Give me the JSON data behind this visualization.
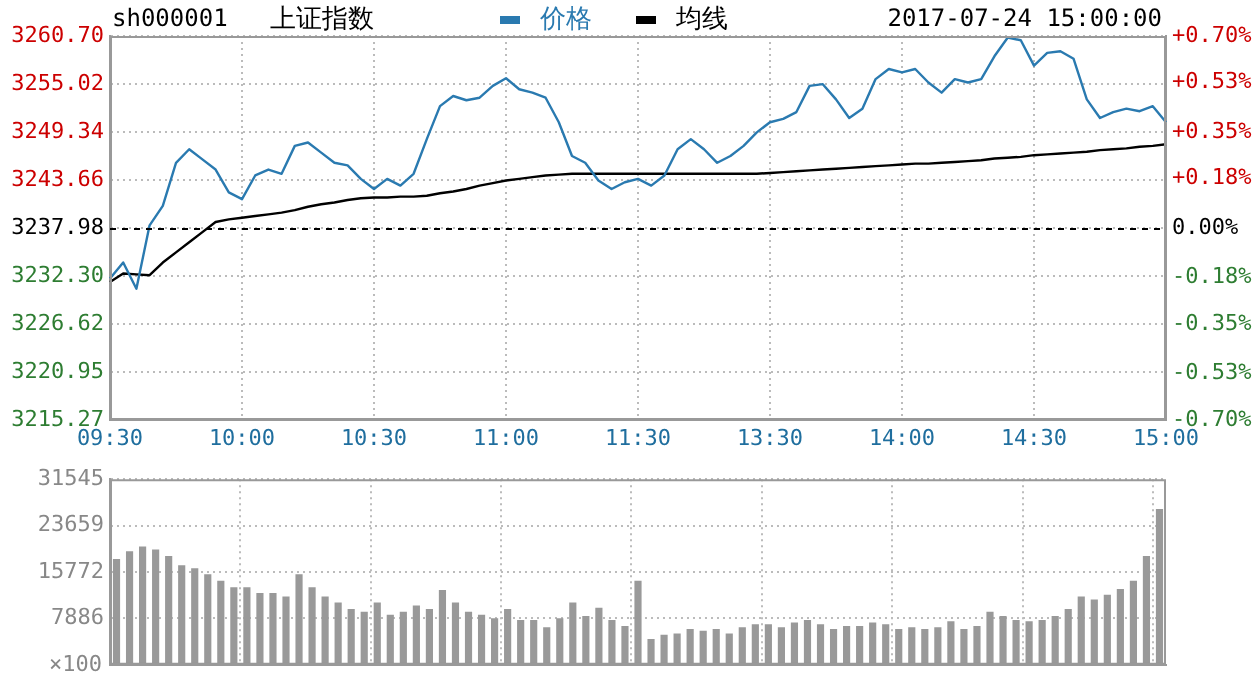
{
  "chart_data": [
    {
      "type": "line",
      "title": "上证指数",
      "annotations": [
        "sh000001",
        "2017-07-24 15:00:00"
      ],
      "categories": [
        "09:30",
        null,
        null,
        null,
        null,
        null,
        null,
        null,
        null,
        null,
        "10:00",
        null,
        null,
        null,
        null,
        null,
        null,
        null,
        null,
        null,
        "10:30",
        null,
        null,
        null,
        null,
        null,
        null,
        null,
        null,
        null,
        "11:00",
        null,
        null,
        null,
        null,
        null,
        null,
        null,
        null,
        null,
        "11:30",
        null,
        null,
        null,
        null,
        null,
        null,
        null,
        null,
        null,
        "13:30",
        null,
        null,
        null,
        null,
        null,
        null,
        null,
        null,
        null,
        "14:00",
        null,
        null,
        null,
        null,
        null,
        null,
        null,
        null,
        null,
        "14:30",
        null,
        null,
        null,
        null,
        null,
        null,
        null,
        null,
        null,
        "15:00"
      ],
      "series": [
        {
          "name": "价格",
          "color": "#2a7ab0",
          "values": [
            3232.0,
            3233.9,
            3230.8,
            3238.3,
            3240.6,
            3245.7,
            3247.3,
            3246.1,
            3244.9,
            3242.2,
            3241.4,
            3244.2,
            3244.9,
            3244.4,
            3247.7,
            3248.1,
            3246.9,
            3245.7,
            3245.4,
            3243.8,
            3242.6,
            3243.8,
            3243.0,
            3244.4,
            3248.5,
            3252.4,
            3253.6,
            3253.1,
            3253.4,
            3254.8,
            3255.7,
            3254.4,
            3254.0,
            3253.4,
            3250.5,
            3246.5,
            3245.7,
            3243.6,
            3242.6,
            3243.4,
            3243.8,
            3243.0,
            3244.2,
            3247.3,
            3248.5,
            3247.3,
            3245.7,
            3246.5,
            3247.7,
            3249.3,
            3250.5,
            3250.9,
            3251.7,
            3254.8,
            3255.0,
            3253.2,
            3251.0,
            3252.1,
            3255.6,
            3256.8,
            3256.4,
            3256.8,
            3255.2,
            3254.0,
            3255.6,
            3255.2,
            3255.6,
            3258.3,
            3260.5,
            3260.2,
            3257.2,
            3258.7,
            3258.9,
            3258.0,
            3253.2,
            3251.0,
            3251.7,
            3252.1,
            3251.8,
            3252.4,
            3250.5
          ]
        },
        {
          "name": "均线",
          "color": "#000000",
          "values": [
            3231.6,
            3232.6,
            3232.5,
            3232.4,
            3233.9,
            3235.1,
            3236.3,
            3237.5,
            3238.7,
            3239.0,
            3239.2,
            3239.4,
            3239.6,
            3239.8,
            3240.1,
            3240.5,
            3240.8,
            3241.0,
            3241.3,
            3241.5,
            3241.6,
            3241.6,
            3241.7,
            3241.7,
            3241.8,
            3242.1,
            3242.3,
            3242.6,
            3243.0,
            3243.3,
            3243.6,
            3243.8,
            3244.0,
            3244.2,
            3244.3,
            3244.4,
            3244.4,
            3244.4,
            3244.4,
            3244.4,
            3244.4,
            3244.4,
            3244.4,
            3244.4,
            3244.4,
            3244.4,
            3244.4,
            3244.4,
            3244.4,
            3244.4,
            3244.5,
            3244.6,
            3244.7,
            3244.8,
            3244.9,
            3245.0,
            3245.1,
            3245.2,
            3245.3,
            3245.4,
            3245.5,
            3245.6,
            3245.6,
            3245.7,
            3245.8,
            3245.9,
            3246.0,
            3246.2,
            3246.3,
            3246.4,
            3246.6,
            3246.7,
            3246.8,
            3246.9,
            3247.0,
            3247.2,
            3247.3,
            3247.4,
            3247.6,
            3247.7,
            3247.9
          ]
        }
      ],
      "ylim": [
        3215.27,
        3260.7
      ],
      "yticks": [
        3215.27,
        3220.95,
        3226.62,
        {
          "value": 3232.3,
          "label": "3232.30"
        },
        3237.98,
        3243.66,
        3249.34,
        3255.02,
        {
          "value": 3260.7,
          "label": "3260.70"
        }
      ],
      "y2lim": [
        -0.7,
        0.7
      ],
      "y2ticks": [
        {
          "value": -0.7,
          "label": "-0.70%"
        },
        {
          "value": -0.53,
          "label": "-0.53%"
        },
        {
          "value": -0.35,
          "label": "-0.35%"
        },
        {
          "value": -0.18,
          "label": "-0.18%"
        },
        {
          "value": 0,
          "label": "0.00%"
        },
        {
          "value": 0.18,
          "label": "+0.18%"
        },
        {
          "value": 0.35,
          "label": "+0.35%"
        },
        {
          "value": 0.53,
          "label": "+0.53%"
        },
        {
          "value": 0.7,
          "label": "+0.70%"
        }
      ],
      "ref_lines": [
        {
          "axis": "y",
          "value": 3237.98,
          "color": "#000000",
          "line_style": "dashed"
        }
      ],
      "legend": "top",
      "grid": true,
      "marker": "none",
      "line_style": "solid"
    },
    {
      "type": "bar",
      "categories": [
        null,
        null,
        null,
        null,
        null,
        null,
        null,
        null,
        null,
        null,
        null,
        null,
        null,
        null,
        null,
        null,
        null,
        null,
        null,
        null,
        null,
        null,
        null,
        null,
        null,
        null,
        null,
        null,
        null,
        null,
        null,
        null,
        null,
        null,
        null,
        null,
        null,
        null,
        null,
        null,
        null,
        null,
        null,
        null,
        null,
        null,
        null,
        null,
        null,
        null,
        null,
        null,
        null,
        null,
        null,
        null,
        null,
        null,
        null,
        null,
        null,
        null,
        null,
        null,
        null,
        null,
        null,
        null,
        null,
        null,
        null,
        null,
        null,
        null,
        null,
        null,
        null,
        null,
        null,
        null,
        null
      ],
      "values": [
        18000,
        19300,
        20100,
        19600,
        18500,
        16900,
        16400,
        15400,
        14300,
        13200,
        13200,
        12200,
        12200,
        11600,
        15400,
        13200,
        11600,
        10600,
        9500,
        9000,
        10600,
        8500,
        9000,
        10100,
        9500,
        12700,
        10600,
        9000,
        8500,
        7900,
        9500,
        7600,
        7600,
        6400,
        7900,
        10600,
        8300,
        9700,
        7600,
        6600,
        14300,
        4400,
        5100,
        5300,
        6100,
        5800,
        6100,
        5300,
        6400,
        6900,
        6900,
        6400,
        7200,
        7600,
        6900,
        6100,
        6600,
        6600,
        7200,
        6900,
        6100,
        6400,
        6100,
        6400,
        7400,
        6100,
        6600,
        9000,
        8300,
        7600,
        7400,
        7600,
        8300,
        9500,
        11600,
        11100,
        11900,
        12900,
        14300,
        18500,
        26500
      ],
      "color": "#999999",
      "ylim": [
        0,
        31545
      ],
      "yticks": [
        {
          "value": 0,
          "label": null
        },
        7886,
        15772,
        23659,
        31545
      ],
      "ylabel": "×100",
      "tick_labels": "y",
      "grid": true
    }
  ]
}
